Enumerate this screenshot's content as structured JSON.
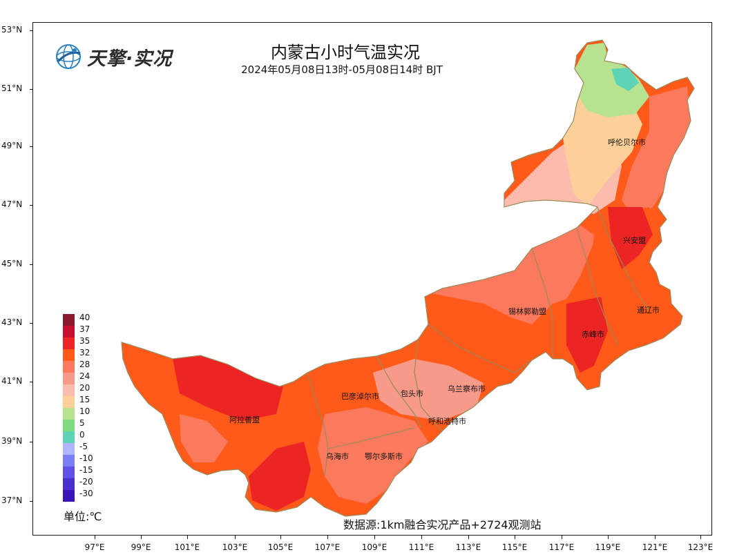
{
  "title": "内蒙古小时气温实况",
  "subtitle": "2024年05月08日13时-05月08日14时 BJT",
  "logo_text": "天擎·实况",
  "source": "数据源:1km融合实况产品+2724观测站",
  "unit": "单位:℃",
  "lat_labels": [
    "53°N",
    "51°N",
    "49°N",
    "47°N",
    "45°N",
    "43°N",
    "41°N",
    "39°N",
    "37°N"
  ],
  "lon_labels": [
    "97°E",
    "99°E",
    "101°E",
    "103°E",
    "105°E",
    "107°E",
    "109°E",
    "111°E",
    "113°E",
    "115°E",
    "117°E",
    "119°E",
    "121°E",
    "123°E"
  ],
  "legend": {
    "labels": [
      "40",
      "37",
      "35",
      "32",
      "28",
      "24",
      "20",
      "15",
      "10",
      "5",
      "0",
      "-5",
      "-10",
      "-15",
      "-20",
      "-30"
    ],
    "colors": [
      "#8b1a2e",
      "#c8102e",
      "#ec2424",
      "#ff5a1a",
      "#fb7a5e",
      "#f79a8a",
      "#fbbcae",
      "#fdd09a",
      "#b7e28f",
      "#7fdb7f",
      "#5fd3b5",
      "#b0b6ff",
      "#7a7ff5",
      "#6150e6",
      "#4b2fce",
      "#3a14b8"
    ]
  },
  "cities": {
    "hulunbuir": "呼伦贝尔市",
    "xinganmeng": "兴安盟",
    "xilingol": "锡林郭勒盟",
    "tongliao": "通辽市",
    "chifeng": "赤峰市",
    "ulanqab": "乌兰察布市",
    "baotou": "包头市",
    "bayannur": "巴彦淖尔市",
    "hohhot": "呼和浩特市",
    "alxa": "阿拉善盟",
    "wuhai": "乌海市",
    "ordos": "鄂尔多斯市"
  },
  "colors": {
    "frame": "#111111",
    "boundary": "#9a8a5a",
    "province_fill": "#ff5a1a"
  }
}
